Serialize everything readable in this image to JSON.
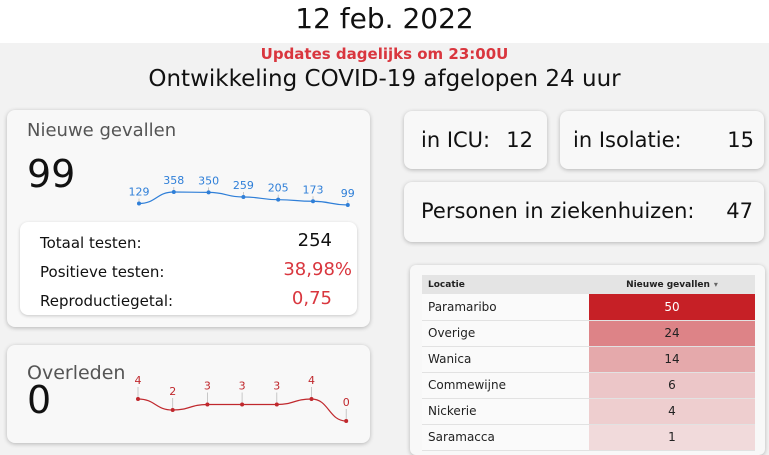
{
  "date": "12 feb. 2022",
  "update_note": "Updates dagelijks om 23:00U",
  "title": "Ontwikkeling COVID-19 afgelopen 24 uur",
  "new_cases": {
    "label": "Nieuwe gevallen",
    "value": "99",
    "trend": [
      129,
      358,
      350,
      259,
      205,
      173,
      99
    ],
    "color": "#2f7fd8"
  },
  "stats": {
    "total_tests_label": "Totaal testen:",
    "total_tests_value": "254",
    "positive_label": "Positieve testen:",
    "positive_value": "38,98%",
    "repro_label": "Reproductiegetal:",
    "repro_value": "0,75"
  },
  "deaths": {
    "label": "Overleden",
    "value": "0",
    "trend": [
      4,
      2,
      3,
      3,
      3,
      4,
      0
    ],
    "color": "#c0282d"
  },
  "icu": {
    "label": "in ICU:",
    "value": "12"
  },
  "isolation": {
    "label": "in Isolatie:",
    "value": "15"
  },
  "hospital": {
    "label": "Personen in ziekenhuizen:",
    "value": "47"
  },
  "table": {
    "col_location": "Locatie",
    "col_new_cases": "Nieuwe gevallen",
    "sort_icon": "sort-down-icon",
    "heat_color": "#c62026",
    "rows": [
      {
        "location": "Paramaribo",
        "cases": "50",
        "level": 1.0
      },
      {
        "location": "Overige",
        "cases": "24",
        "level": 0.48
      },
      {
        "location": "Wanica",
        "cases": "14",
        "level": 0.28
      },
      {
        "location": "Commewijne",
        "cases": "6",
        "level": 0.12
      },
      {
        "location": "Nickerie",
        "cases": "4",
        "level": 0.08
      },
      {
        "location": "Saramacca",
        "cases": "1",
        "level": 0.02
      }
    ]
  }
}
